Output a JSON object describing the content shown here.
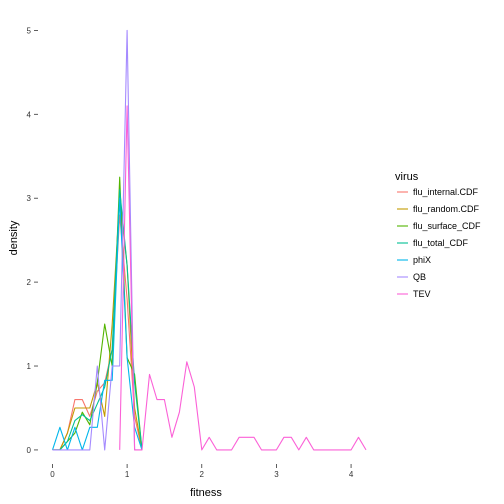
{
  "chart_data": {
    "type": "line",
    "title": "",
    "xlabel": "fitness",
    "ylabel": "density",
    "xlim": [
      -0.1,
      4.2
    ],
    "ylim": [
      -0.12,
      5.1
    ],
    "x_ticks": [
      0,
      1,
      2,
      3,
      4
    ],
    "y_ticks": [
      0,
      1,
      2,
      3,
      4,
      5
    ],
    "grid": false,
    "legend": {
      "title": "virus",
      "position": "right",
      "entries": [
        "flu_internal.CDF",
        "flu_random.CDF",
        "flu_surface_CDF",
        "flu_total_CDF",
        "phiX",
        "QB",
        "TEV"
      ]
    },
    "series": [
      {
        "name": "flu_internal.CDF",
        "color": "#F8766D",
        "x": [
          0.0,
          0.1,
          0.2,
          0.3,
          0.4,
          0.5,
          0.6,
          0.7,
          0.8,
          0.9,
          1.0,
          1.1,
          1.2
        ],
        "y": [
          0.0,
          0.0,
          0.2,
          0.6,
          0.6,
          0.4,
          0.7,
          0.8,
          1.2,
          2.8,
          1.8,
          0.4,
          0.0
        ]
      },
      {
        "name": "flu_random.CDF",
        "color": "#C49A00",
        "x": [
          0.0,
          0.1,
          0.2,
          0.3,
          0.4,
          0.5,
          0.6,
          0.7,
          0.8,
          0.9,
          1.0,
          1.1,
          1.2
        ],
        "y": [
          0.0,
          0.0,
          0.2,
          0.5,
          0.5,
          0.5,
          0.8,
          0.4,
          1.5,
          3.0,
          2.2,
          0.5,
          0.0
        ]
      },
      {
        "name": "flu_surface_CDF",
        "color": "#53B400",
        "x": [
          0.0,
          0.1,
          0.2,
          0.3,
          0.4,
          0.5,
          0.6,
          0.7,
          0.8,
          0.9,
          1.0,
          1.1,
          1.2
        ],
        "y": [
          0.0,
          0.0,
          0.1,
          0.2,
          0.45,
          0.3,
          0.8,
          1.5,
          1.0,
          3.25,
          1.1,
          0.9,
          0.0
        ]
      },
      {
        "name": "flu_total_CDF",
        "color": "#00C094",
        "x": [
          0.0,
          0.1,
          0.2,
          0.3,
          0.4,
          0.5,
          0.6,
          0.7,
          0.8,
          0.9,
          1.0,
          1.1,
          1.2
        ],
        "y": [
          0.0,
          0.0,
          0.1,
          0.35,
          0.42,
          0.35,
          0.55,
          0.75,
          1.2,
          3.1,
          2.2,
          0.8,
          0.0
        ]
      },
      {
        "name": "phiX",
        "color": "#00B6EB",
        "x": [
          0.0,
          0.1,
          0.2,
          0.3,
          0.4,
          0.5,
          0.6,
          0.7,
          0.8,
          0.9,
          1.0,
          1.1,
          1.2
        ],
        "y": [
          0.0,
          0.27,
          0.0,
          0.27,
          0.0,
          0.27,
          0.27,
          0.83,
          0.83,
          3.0,
          1.1,
          0.27,
          0.0
        ]
      },
      {
        "name": "QB",
        "color": "#A58AFF",
        "x": [
          0.0,
          0.1,
          0.2,
          0.3,
          0.4,
          0.5,
          0.6,
          0.7,
          0.8,
          0.9,
          1.0,
          1.1,
          1.2
        ],
        "y": [
          0.0,
          0.0,
          0.0,
          0.0,
          0.0,
          0.0,
          1.0,
          0.0,
          1.0,
          1.0,
          5.0,
          0.0,
          0.0
        ]
      },
      {
        "name": "TEV",
        "color": "#FB61D7",
        "x": [
          0.9,
          1.0,
          1.1,
          1.2,
          1.3,
          1.4,
          1.5,
          1.6,
          1.7,
          1.8,
          1.9,
          2.0,
          2.1,
          2.2,
          2.3,
          2.4,
          2.5,
          2.6,
          2.7,
          2.8,
          2.9,
          3.0,
          3.1,
          3.2,
          3.3,
          3.4,
          3.5,
          3.6,
          3.7,
          3.8,
          3.9,
          4.0,
          4.1,
          4.2
        ],
        "y": [
          0.0,
          4.1,
          0.0,
          0.0,
          0.9,
          0.6,
          0.6,
          0.15,
          0.45,
          1.05,
          0.75,
          0.0,
          0.15,
          0.0,
          0.0,
          0.0,
          0.15,
          0.15,
          0.15,
          0.0,
          0.0,
          0.0,
          0.15,
          0.15,
          0.0,
          0.15,
          0.0,
          0.0,
          0.0,
          0.0,
          0.0,
          0.0,
          0.15,
          0.0
        ]
      }
    ]
  }
}
